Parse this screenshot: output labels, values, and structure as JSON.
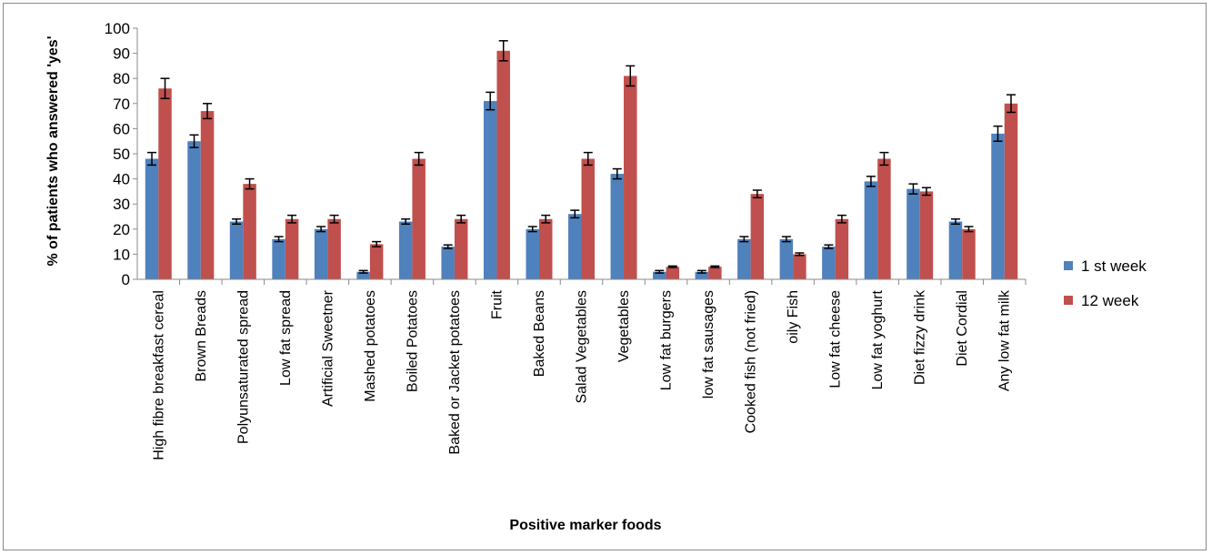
{
  "chart_data": {
    "type": "bar",
    "title": "",
    "xlabel": "Positive marker foods",
    "ylabel": "% of patients who answered 'yes'",
    "ylim": [
      0,
      100
    ],
    "yticks": [
      0,
      10,
      20,
      30,
      40,
      50,
      60,
      70,
      80,
      90,
      100
    ],
    "grid": false,
    "legend_position": "right",
    "error_bars": true,
    "categories": [
      "High fibre breakfast cereal",
      "Brown Breads",
      "Polyunsaturated spread",
      "Low fat spread",
      "Artificial Sweetner",
      "Mashed potatoes",
      "Boiled Potatoes",
      "Baked or Jacket potatoes",
      "Fruit",
      "Baked Beans",
      "Salad Vegetables",
      "Vegetables",
      "Low fat burgers",
      "low fat sausages",
      "Cooked fish (not fried)",
      "oily Fish",
      "Low fat cheese",
      "Low fat yoghurt",
      "Diet fizzy drink",
      "Diet Cordial",
      "Any low fat milk"
    ],
    "series": [
      {
        "name": "1 st week",
        "color": "#4f81bd",
        "values": [
          48,
          55,
          23,
          16,
          20,
          3,
          23,
          13,
          71,
          20,
          26,
          42,
          3,
          3,
          16,
          16,
          13,
          39,
          36,
          23,
          58
        ],
        "errors": [
          2.5,
          2.5,
          1,
          1,
          1,
          0.5,
          1,
          0.7,
          3.5,
          1,
          1.5,
          2,
          0.5,
          0.5,
          1,
          1,
          0.7,
          2,
          2,
          1,
          3
        ]
      },
      {
        "name": "12 week",
        "color": "#c0504d",
        "values": [
          76,
          67,
          38,
          24,
          24,
          14,
          48,
          24,
          91,
          24,
          48,
          81,
          5,
          5,
          34,
          10,
          24,
          48,
          35,
          20,
          70
        ],
        "errors": [
          4,
          3,
          2,
          1.5,
          1.5,
          1,
          2.5,
          1.5,
          4,
          1.5,
          2.5,
          4,
          0.3,
          0.3,
          1.5,
          0.5,
          1.5,
          2.5,
          1.5,
          1,
          3.5
        ]
      }
    ]
  }
}
